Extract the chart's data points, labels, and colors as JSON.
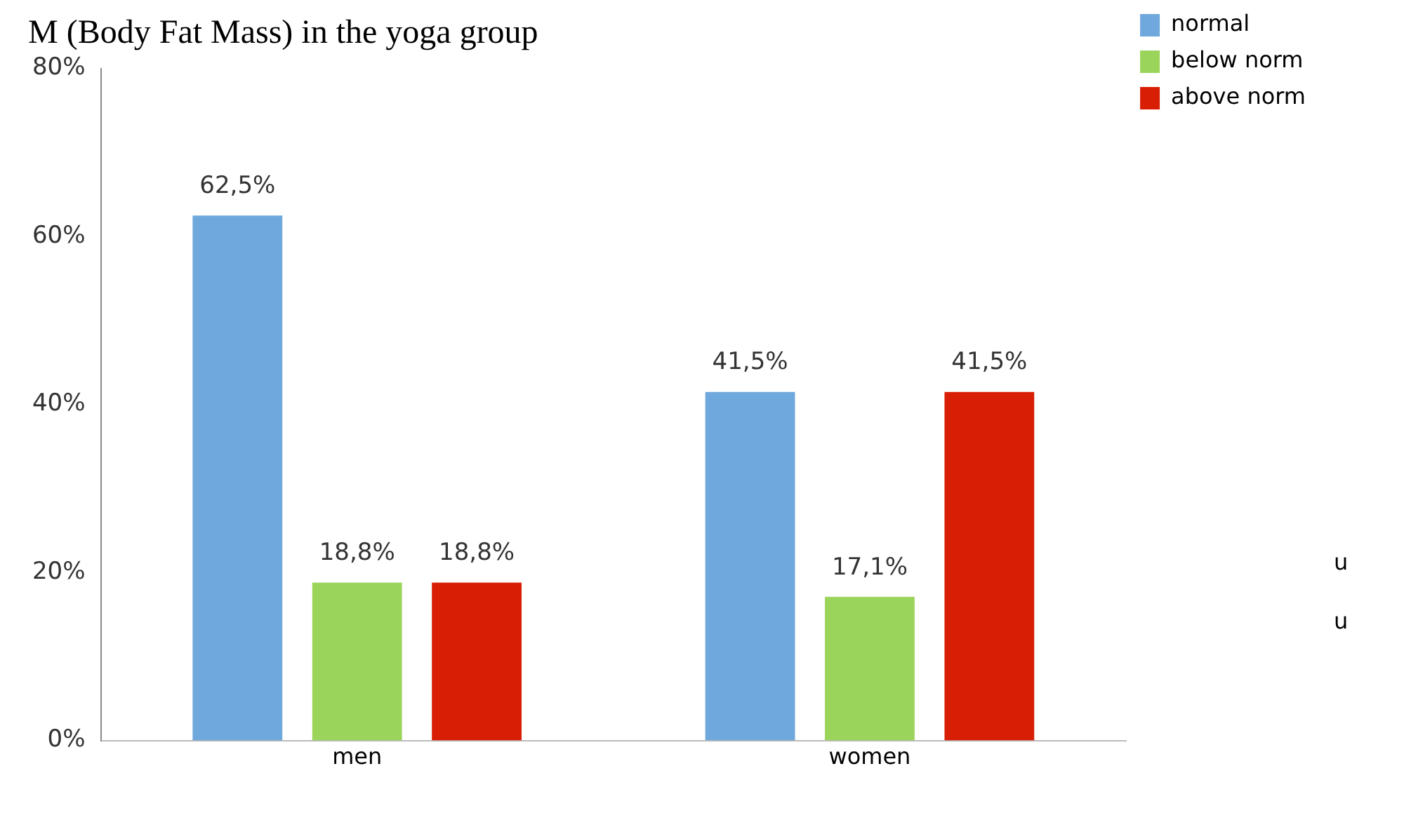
{
  "chart_data": {
    "type": "bar",
    "title": "M (Body Fat Mass) in the yoga group",
    "categories": [
      "men",
      "women"
    ],
    "series": [
      {
        "name": "normal",
        "color": "#6fa8dc",
        "values": [
          62.5,
          41.5
        ],
        "value_labels": [
          "62,5%",
          "41,5%"
        ]
      },
      {
        "name": "below norm",
        "color": "#9bd45a",
        "values": [
          18.8,
          17.1
        ],
        "value_labels": [
          "18,8%",
          "17,1%"
        ]
      },
      {
        "name": "above norm",
        "color": "#d81e05",
        "values": [
          18.8,
          41.5
        ],
        "value_labels": [
          "18,8%",
          "41,5%"
        ]
      }
    ],
    "ylim": [
      0,
      80
    ],
    "yticks": [
      {
        "value": 0,
        "label": "0%"
      },
      {
        "value": 20,
        "label": "20%"
      },
      {
        "value": 40,
        "label": "40%"
      },
      {
        "value": 60,
        "label": "60%"
      },
      {
        "value": 80,
        "label": "80%"
      }
    ],
    "grid": false,
    "legend": "top right",
    "annotations": [
      "u",
      "u"
    ]
  }
}
